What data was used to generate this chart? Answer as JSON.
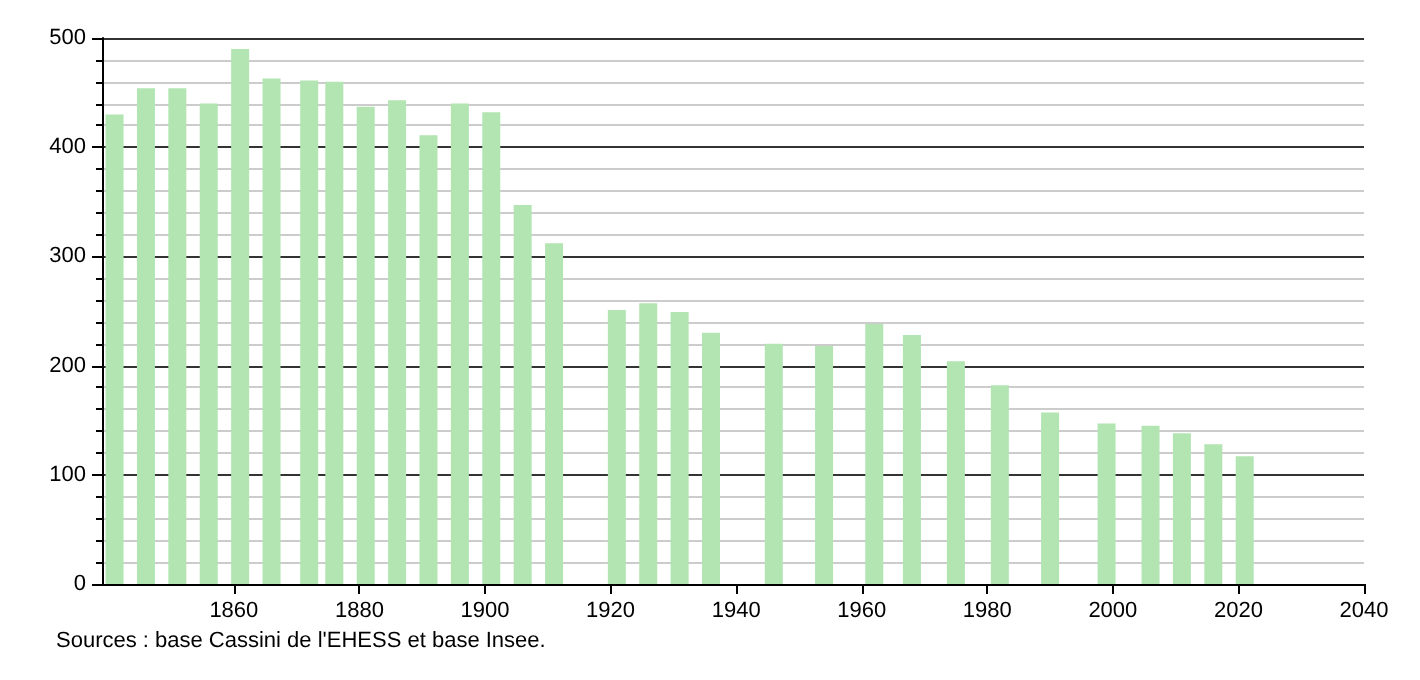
{
  "chart_data": {
    "type": "bar",
    "x": [
      1841,
      1846,
      1851,
      1856,
      1861,
      1866,
      1872,
      1876,
      1881,
      1886,
      1891,
      1896,
      1901,
      1906,
      1911,
      1921,
      1926,
      1931,
      1936,
      1946,
      1954,
      1962,
      1968,
      1975,
      1982,
      1990,
      1999,
      2006,
      2011,
      2016,
      2021
    ],
    "values": [
      430,
      454,
      454,
      440,
      490,
      463,
      461,
      460,
      437,
      443,
      411,
      440,
      432,
      347,
      312,
      251,
      257,
      249,
      230,
      220,
      218,
      238,
      228,
      204,
      182,
      157,
      147,
      145,
      138,
      128,
      117
    ],
    "color": "#b2e5b2",
    "xlim": [
      1839,
      2040
    ],
    "xticks": [
      1860,
      1880,
      1900,
      1920,
      1940,
      1960,
      1980,
      2000,
      2020,
      2040
    ],
    "ylim": [
      0,
      500
    ],
    "yticks": [
      0,
      100,
      200,
      300,
      400,
      500
    ],
    "grid": "y",
    "annotations": [
      "Sources : base Cassini de l'EHESS et base Insee."
    ]
  }
}
